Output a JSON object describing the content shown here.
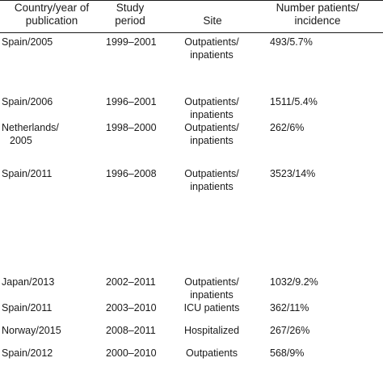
{
  "columns": [
    {
      "line1": "Country/year of",
      "line2": "publication"
    },
    {
      "line1": "Study",
      "line2": "period"
    },
    {
      "line1": "Site",
      "line2": ""
    },
    {
      "line1": "Number patients/",
      "line2": "incidence"
    }
  ],
  "rows": [
    {
      "country": "Spain/2005",
      "country2": "",
      "period": "1999–2001",
      "site": "Outpatients/",
      "site2": "inpatients",
      "number": "493/5.7%"
    },
    {
      "country": "Spain/2006",
      "country2": "",
      "period": "1996–2001",
      "site": "Outpatients/",
      "site2": "inpatients",
      "number": "1511/5.4%"
    },
    {
      "country": "Netherlands/",
      "country2": "2005",
      "period": "1998–2000",
      "site": "Outpatients/",
      "site2": "inpatients",
      "number": "262/6%"
    },
    {
      "country": "Spain/2011",
      "country2": "",
      "period": "1996–2008",
      "site": "Outpatients/",
      "site2": "inpatients",
      "number": "3523/14%"
    },
    {
      "country": "Japan/2013",
      "country2": "",
      "period": "2002–2011",
      "site": "Outpatients/",
      "site2": "inpatients",
      "number": "1032/9.2%"
    },
    {
      "country": "Spain/2011",
      "country2": "",
      "period": "2003–2010",
      "site": "ICU patients",
      "site2": "",
      "number": "362/11%"
    },
    {
      "country": "Norway/2015",
      "country2": "",
      "period": "2008–2011",
      "site": "Hospitalized",
      "site2": "",
      "number": "267/26%"
    },
    {
      "country": "Spain/2012",
      "country2": "",
      "period": "2000–2010",
      "site": "Outpatients",
      "site2": "",
      "number": "568/9%"
    }
  ]
}
